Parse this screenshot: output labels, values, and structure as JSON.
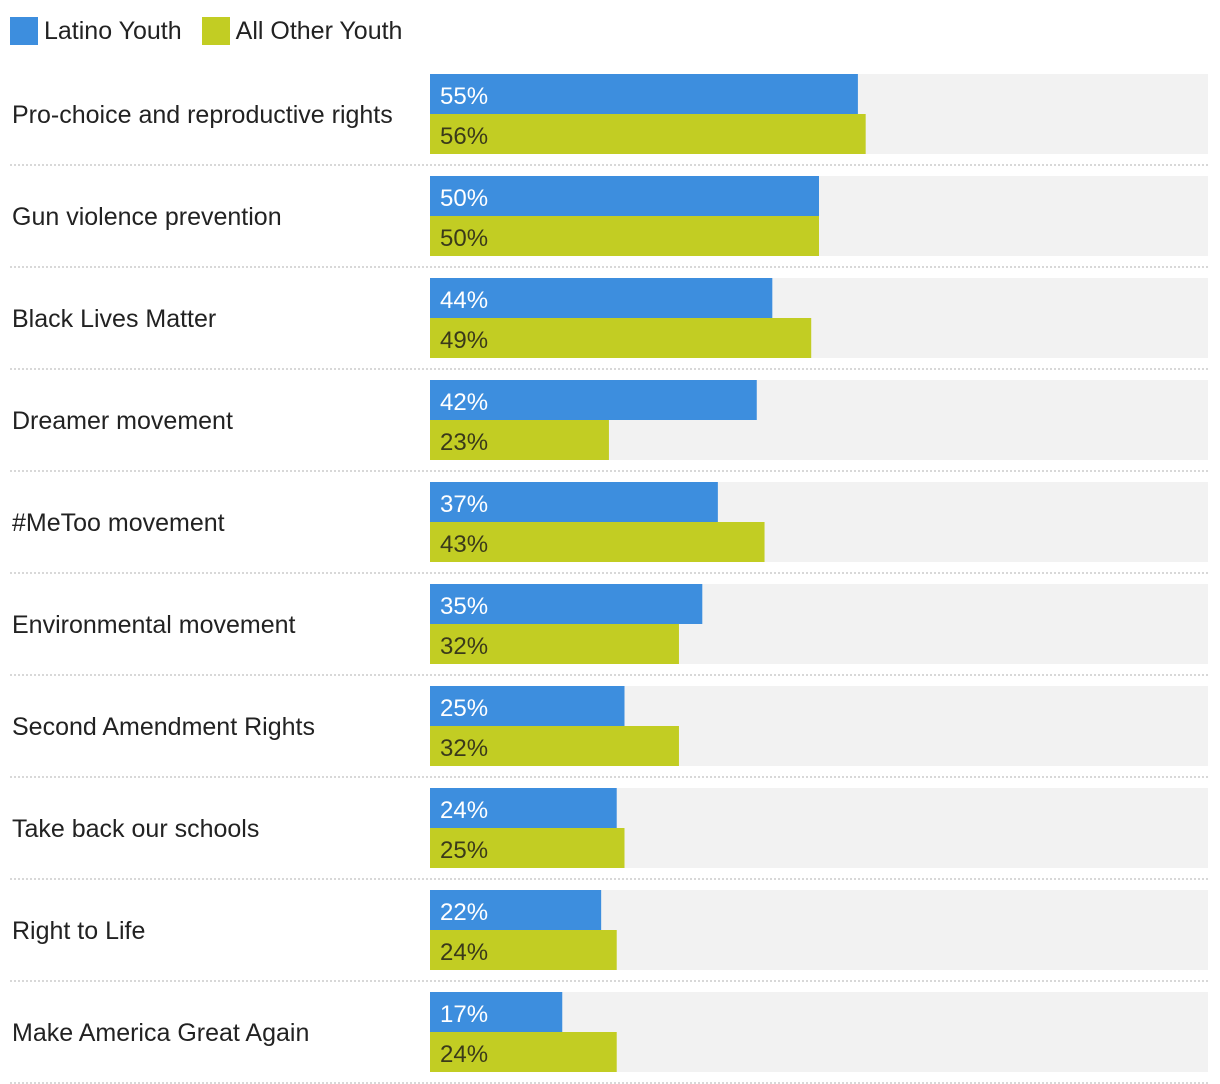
{
  "chart_data": {
    "type": "bar",
    "orientation": "horizontal",
    "categories": [
      "Pro-choice and reproductive rights",
      "Gun violence prevention",
      "Black Lives Matter",
      "Dreamer movement",
      "#MeToo movement",
      "Environmental movement",
      "Second Amendment Rights",
      "Take back our schools",
      "Right to Life",
      "Make America Great Again"
    ],
    "series": [
      {
        "name": "Latino Youth",
        "color": "#3d8ede",
        "label_color": "#ffffff",
        "values": [
          55,
          50,
          44,
          42,
          37,
          35,
          25,
          24,
          22,
          17
        ]
      },
      {
        "name": "All Other Youth",
        "color": "#c2cd23",
        "label_color": "#3a3a1a",
        "values": [
          56,
          50,
          49,
          23,
          43,
          32,
          32,
          25,
          24,
          24
        ]
      }
    ],
    "value_suffix": "%",
    "xlim": [
      0,
      100
    ],
    "title": "",
    "xlabel": "",
    "ylabel": "",
    "legend_position": "top-left",
    "track_color": "#f2f2f2",
    "separator_color": "#cccccc"
  }
}
